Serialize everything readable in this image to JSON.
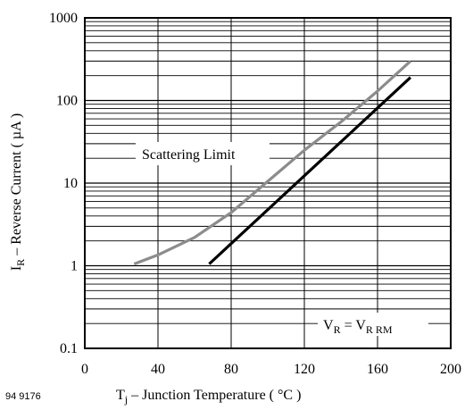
{
  "chart_data": {
    "type": "line",
    "xlabel_main": "T",
    "xlabel_sub": "j",
    "xlabel_rest": " – Junction Temperature ( °C )",
    "ylabel_main": "I",
    "ylabel_sub": "R",
    "ylabel_rest": " – Reverse Current ( µA )",
    "figure_id": "94 9176",
    "x_scale": "linear",
    "xlim": [
      0,
      200
    ],
    "x_ticks": [
      "0",
      "40",
      "80",
      "120",
      "160",
      "200"
    ],
    "y_scale": "log",
    "ylim": [
      0.1,
      1000
    ],
    "y_ticks": [
      "0.1",
      "1",
      "10",
      "100",
      "1000"
    ],
    "grid": true,
    "series": [
      {
        "name": "Scattering Limit",
        "color": "#8c8c8c",
        "x": [
          27,
          40,
          60,
          80,
          100,
          120,
          140,
          160,
          178
        ],
        "y": [
          1.05,
          1.35,
          2.2,
          4.4,
          10.5,
          25,
          55,
          130,
          300
        ]
      },
      {
        "name": "",
        "color": "#000000",
        "x": [
          68,
          178
        ],
        "y": [
          1.05,
          190
        ]
      }
    ],
    "annotations": {
      "scattering_label": "Scattering Limit",
      "vr_main": "V",
      "vr_sub": "R",
      "vr_eq": " = ",
      "vrrm_main": "V",
      "vrrm_sub": "R RM"
    }
  }
}
